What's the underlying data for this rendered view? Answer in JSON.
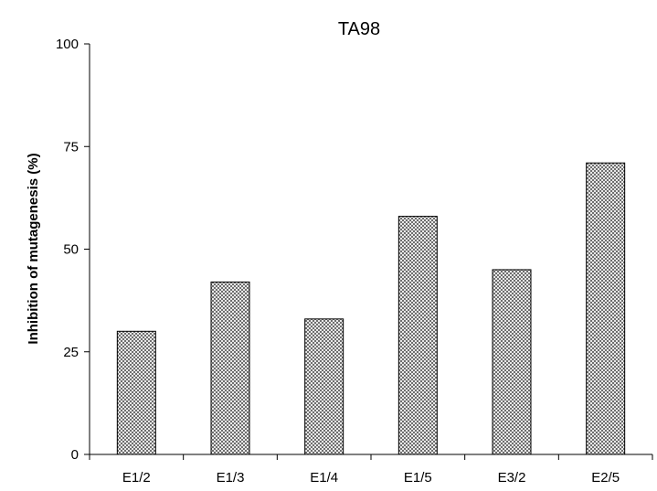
{
  "chart_data": {
    "type": "bar",
    "title": "TA98",
    "xlabel": "",
    "ylabel": "Inhibition of mutagenesis (%)",
    "categories": [
      "E1/2",
      "E1/3",
      "E1/4",
      "E1/5",
      "E3/2",
      "E2/5"
    ],
    "values": [
      30,
      42,
      33,
      58,
      45,
      71
    ],
    "ylim": [
      0,
      100
    ],
    "yticks": [
      "0",
      "25",
      "50",
      "75",
      "100"
    ],
    "grid": false,
    "legend": "none",
    "bar_fill": "checkered-gray",
    "colors": {
      "bar_dark": "#6e6e6e",
      "bar_light": "#e8e8e8",
      "axis": "#000000"
    }
  }
}
